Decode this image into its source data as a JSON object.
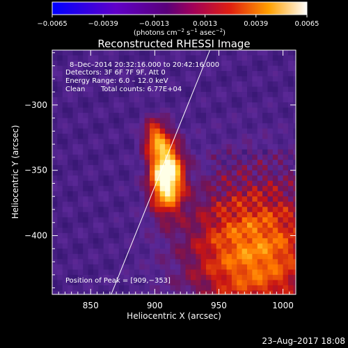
{
  "chart_data": {
    "type": "heatmap",
    "title": "Reconstructed RHESSI Image",
    "xlabel": "Heliocentric X (arcsec)",
    "ylabel": "Heliocentric Y (arcsec)",
    "xlim": [
      820,
      1010
    ],
    "ylim": [
      -445,
      -258
    ],
    "x_ticks": [
      850,
      900,
      950,
      1000
    ],
    "y_ticks": [
      -300,
      -350,
      -400
    ],
    "x_tick_labels": [
      "850",
      "900",
      "950",
      "1000"
    ],
    "y_tick_labels": [
      "−300",
      "−350",
      "−400"
    ],
    "colorbar": {
      "range": [
        -0.0065,
        0.0065
      ],
      "tick_values": [
        -0.0065,
        -0.0039,
        -0.0013,
        0.0013,
        0.0039,
        0.0065
      ],
      "tick_labels": [
        "−0.0065",
        "−0.0039",
        "−0.0013",
        "0.0013",
        "0.0039",
        "0.0065"
      ],
      "label_base": "(photons cm",
      "label_exp1": "−2",
      "label_mid1": " s",
      "label_exp2": "−1",
      "label_mid2": " asec",
      "label_exp3": "−2",
      "label_end": ")"
    },
    "annotations": {
      "line1": "8–Dec–2014 20:32:16.000 to 20:42:16.000",
      "line2": "Detectors: 3F 6F 7F 9F, Att 0",
      "line3": "Energy Range: 6.0 – 12.0 keV",
      "line4a": "Clean",
      "line4b": "Total counts: 6.77E+04",
      "peak": "Position of Peak = [909,−353]"
    },
    "peak": {
      "x": 909,
      "y": -353
    },
    "limb_line": [
      [
        866,
        -445
      ],
      [
        943,
        -258
      ]
    ],
    "sources": [
      {
        "x": 907,
        "y": -352,
        "sx": 9,
        "sy": 18,
        "amp": 1.0
      },
      {
        "x": 898,
        "y": -322,
        "sx": 7,
        "sy": 10,
        "amp": 0.45
      },
      {
        "x": 975,
        "y": -410,
        "sx": 38,
        "sy": 40,
        "amp": 0.6
      }
    ]
  },
  "footer": {
    "date": "23–Aug–2017 18:08"
  }
}
